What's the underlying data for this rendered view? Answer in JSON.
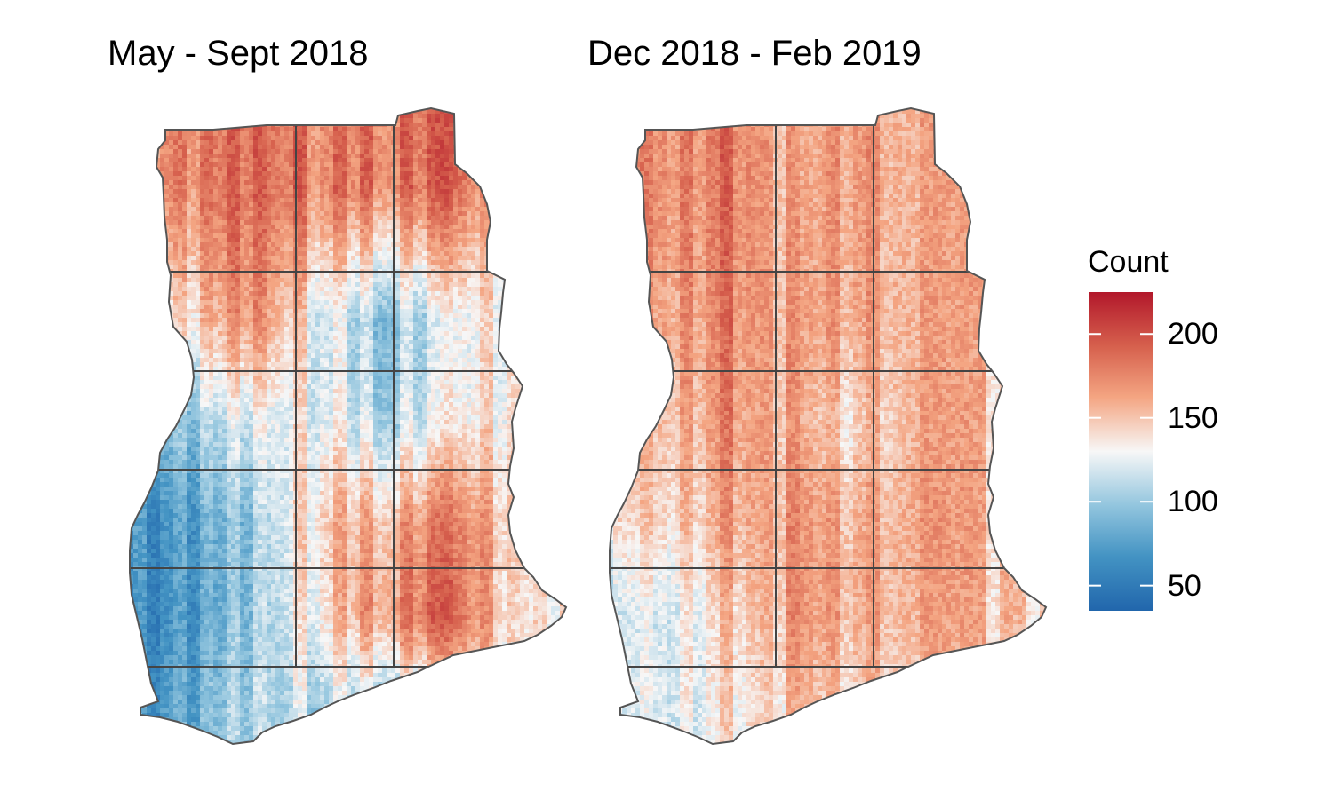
{
  "titles": {
    "left": "May - Sept 2018",
    "right": "Dec 2018 - Feb 2019"
  },
  "legend": {
    "title": "Count",
    "range": [
      35,
      225
    ],
    "ticks": [
      {
        "value": 50,
        "label": "50"
      },
      {
        "value": 100,
        "label": "100"
      },
      {
        "value": 150,
        "label": "150"
      },
      {
        "value": 200,
        "label": "200"
      }
    ],
    "palette": "RdBu (reversed)",
    "colors": {
      "low": "#2166ac",
      "mid": "#f7f7f7",
      "high": "#b2182b"
    }
  },
  "panels": [
    {
      "name": "May - Sept 2018",
      "grid_values": [
        [
          175,
          190,
          178,
          180,
          190,
          145
        ],
        [
          135,
          175,
          125,
          100,
          112,
          150
        ],
        [
          95,
          125,
          130,
          110,
          120,
          150
        ],
        [
          70,
          100,
          150,
          155,
          175,
          150
        ],
        [
          65,
          100,
          140,
          165,
          190,
          140
        ],
        [
          75,
          110,
          110,
          105,
          115,
          150
        ]
      ]
    },
    {
      "name": "Dec 2018 - Feb 2019",
      "grid_values": [
        [
          170,
          185,
          155,
          170,
          160,
          150
        ],
        [
          160,
          180,
          160,
          165,
          160,
          150
        ],
        [
          150,
          175,
          155,
          145,
          160,
          150
        ],
        [
          140,
          165,
          165,
          160,
          165,
          150
        ],
        [
          115,
          150,
          165,
          160,
          160,
          150
        ],
        [
          120,
          140,
          150,
          145,
          150,
          150
        ]
      ]
    }
  ]
}
